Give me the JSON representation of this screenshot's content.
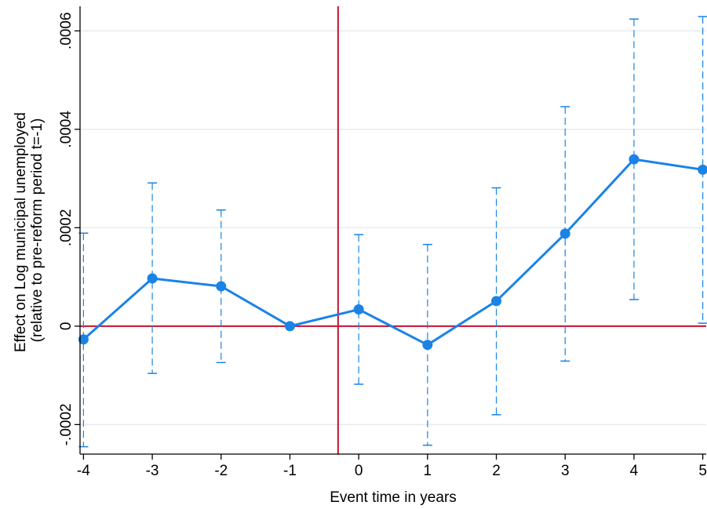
{
  "chart_data": {
    "type": "line",
    "xlabel": "Event time in years",
    "ylabel_lines": [
      "Effect on Log municipal unemployed",
      "(relative to pre-reform period t=-1)"
    ],
    "x": [
      -4,
      -3,
      -2,
      -1,
      0,
      1,
      2,
      3,
      4,
      5
    ],
    "x_tick_labels": [
      "-4",
      "-3",
      "-2",
      "-1",
      "0",
      "1",
      "2",
      "3",
      "4",
      "5"
    ],
    "y_ticks": [
      -0.0002,
      0,
      0.0002,
      0.0004,
      0.0006
    ],
    "y_tick_labels": [
      "-.0002",
      "0",
      ".0002",
      ".0004",
      ".0006"
    ],
    "xlim": [
      -4.05,
      5.05
    ],
    "ylim": [
      -0.00026,
      0.00065
    ],
    "grid": true,
    "series": [
      {
        "values": [
          -2.7e-05,
          9.7e-05,
          8.1e-05,
          0.0,
          3.4e-05,
          -3.8e-05,
          5.1e-05,
          0.000188,
          0.000339,
          0.000318
        ],
        "ci_lower": [
          -0.000245,
          -9.6e-05,
          -7.4e-05,
          null,
          -0.000118,
          -0.000242,
          -0.00018,
          -7.1e-05,
          5.4e-05,
          6e-06
        ],
        "ci_upper": [
          0.000189,
          0.000291,
          0.000236,
          null,
          0.000186,
          0.000166,
          0.000281,
          0.000446,
          0.000624,
          0.000629
        ]
      }
    ],
    "reference_lines": {
      "horizontal_y": 0,
      "vertical_x": -0.3
    },
    "colors": {
      "series": "#1a83e6",
      "reference": "#c8102e",
      "grid": "#e6ebef",
      "axis": "#000000"
    }
  }
}
